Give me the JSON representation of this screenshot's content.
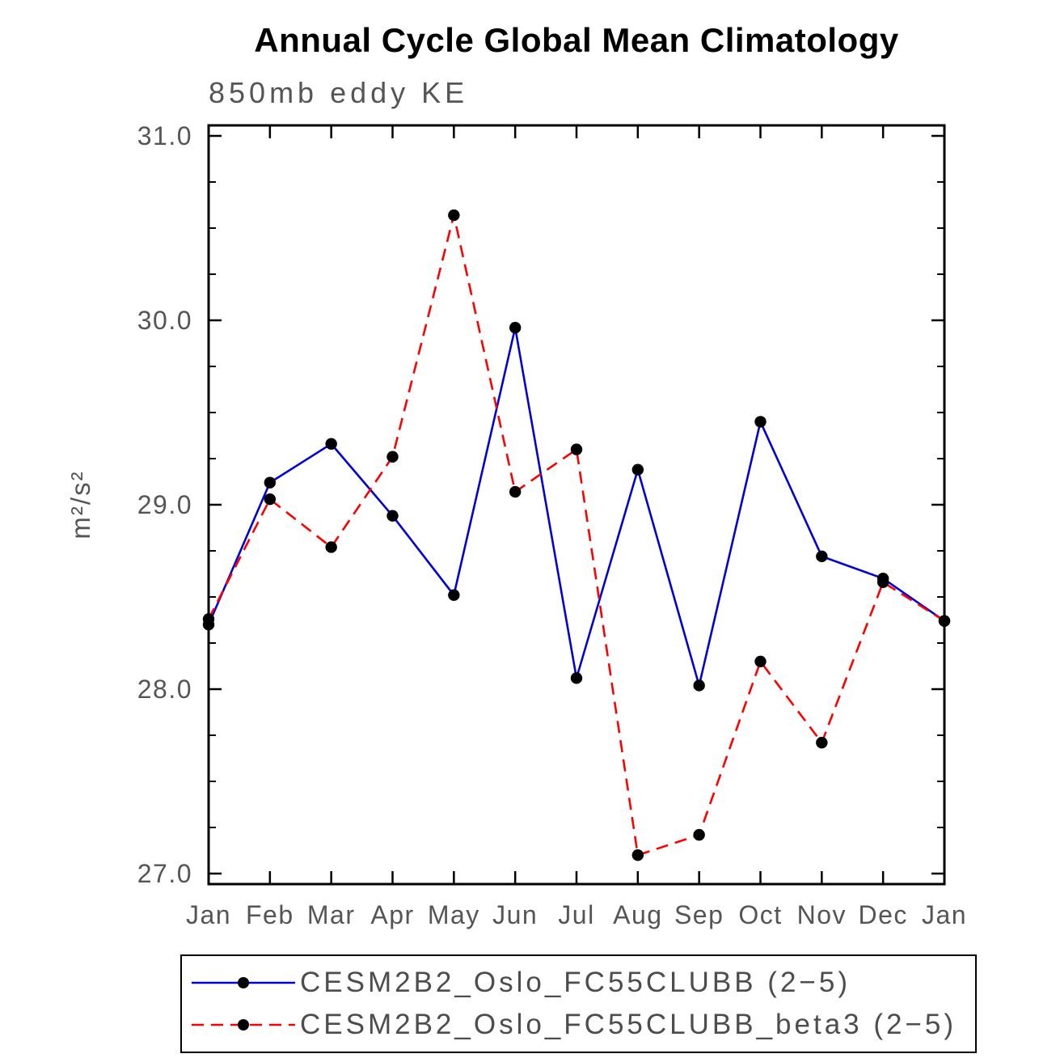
{
  "page": {
    "background_color": "#ffffff"
  },
  "chart_data": {
    "type": "line",
    "title": "Annual Cycle Global Mean Climatology",
    "subtitle": "850mb eddy KE",
    "xlabel": "",
    "ylabel": "m²/s²",
    "categories": [
      "Jan",
      "Feb",
      "Mar",
      "Apr",
      "May",
      "Jun",
      "Jul",
      "Aug",
      "Sep",
      "Oct",
      "Nov",
      "Dec",
      "Jan"
    ],
    "ylim": [
      27.0,
      31.0
    ],
    "ytick_values": [
      27,
      28,
      29,
      30,
      31
    ],
    "ytick_labels": [
      "27.0",
      "28.0",
      "29.0",
      "30.0",
      "31.0"
    ],
    "y_minor_step": 0.25,
    "grid": false,
    "legend_position": "bottom",
    "axis_color": "#000000",
    "label_color": "#555555",
    "series": [
      {
        "name": "CESM2B2_Oslo_FC55CLUBB (2−5)",
        "label": "CESM2B2_Oslo_FC55CLUBB (2−5)",
        "color": "#0000dd",
        "line_style": "solid",
        "marker": "circle",
        "marker_color": "#000000",
        "values": [
          28.35,
          29.12,
          29.33,
          28.94,
          28.51,
          29.96,
          28.06,
          29.19,
          28.02,
          29.45,
          28.72,
          28.6,
          28.37
        ]
      },
      {
        "name": "CESM2B2_Oslo_FC55CLUBB_beta3 (2−5)",
        "label": "CESM2B2_Oslo_FC55CLUBB_beta3 (2−5)",
        "color": "#ff0000",
        "line_style": "dashed",
        "marker": "circle",
        "marker_color": "#000000",
        "values": [
          28.38,
          29.03,
          28.77,
          29.26,
          30.57,
          29.07,
          29.3,
          27.1,
          27.21,
          28.15,
          27.71,
          28.58,
          28.37
        ]
      }
    ]
  }
}
